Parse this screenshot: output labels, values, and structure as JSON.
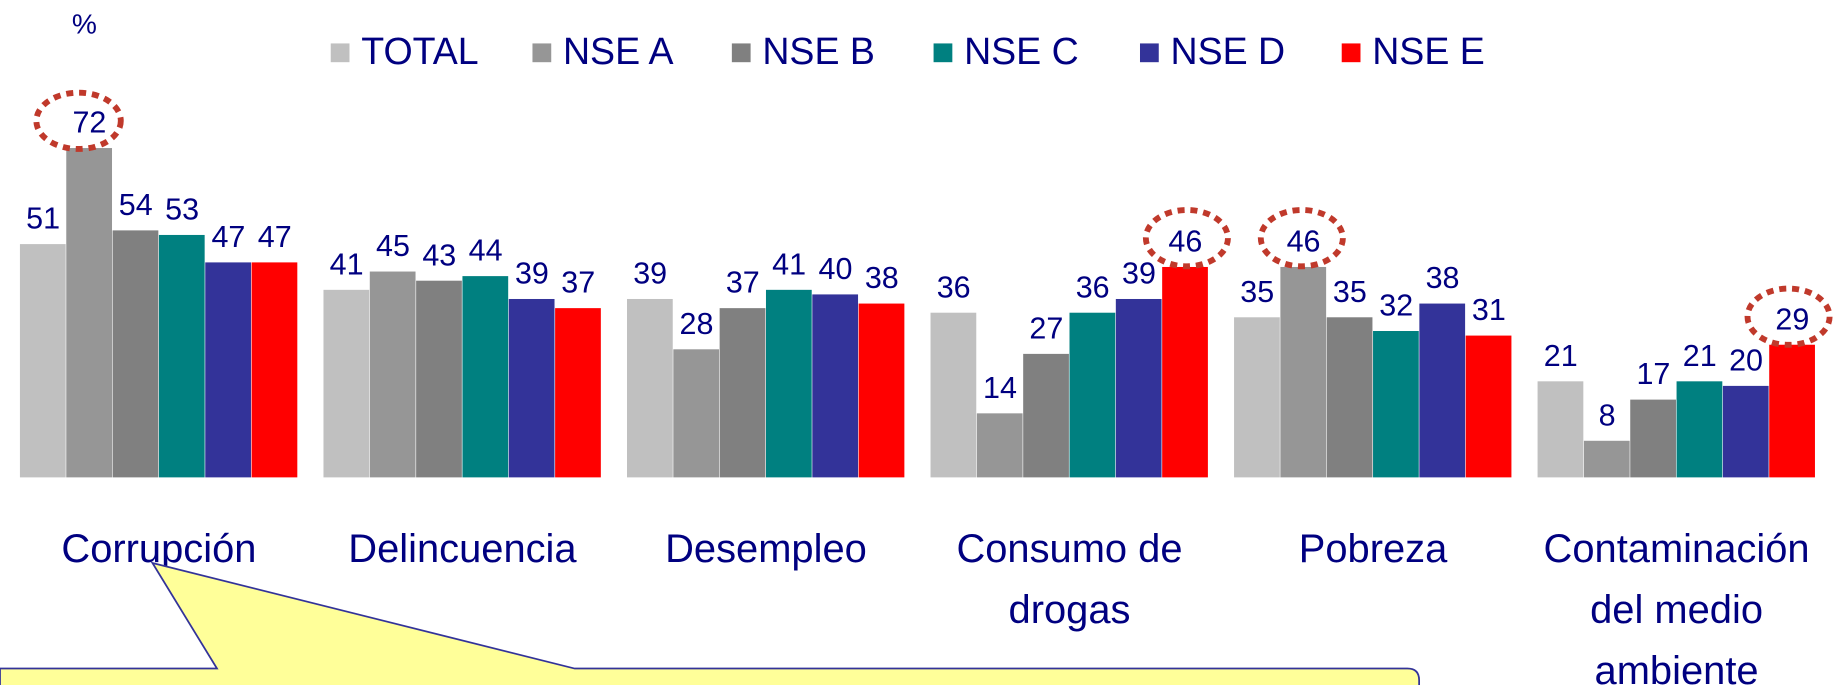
{
  "chart_data": {
    "type": "bar",
    "y_label": "%",
    "categories": [
      "Corrupción",
      "Delincuencia",
      "Desempleo",
      "Consumo de drogas",
      "Pobreza",
      "Contaminación del medio ambiente"
    ],
    "series": [
      {
        "name": "TOTAL",
        "color": "#c0c0c0",
        "values": [
          51,
          41,
          39,
          36,
          35,
          21
        ]
      },
      {
        "name": "NSE A",
        "color": "#969696",
        "values": [
          72,
          45,
          28,
          14,
          46,
          8
        ]
      },
      {
        "name": "NSE B",
        "color": "#808080",
        "values": [
          54,
          43,
          37,
          27,
          35,
          17
        ]
      },
      {
        "name": "NSE C",
        "color": "#008080",
        "values": [
          53,
          44,
          41,
          36,
          32,
          21
        ]
      },
      {
        "name": "NSE D",
        "color": "#333399",
        "values": [
          47,
          39,
          40,
          39,
          38,
          20
        ]
      },
      {
        "name": "NSE E",
        "color": "#ff0000",
        "values": [
          47,
          37,
          38,
          46,
          31,
          29
        ]
      }
    ],
    "ylim": [
      0,
      100
    ],
    "legend": "top"
  }
}
